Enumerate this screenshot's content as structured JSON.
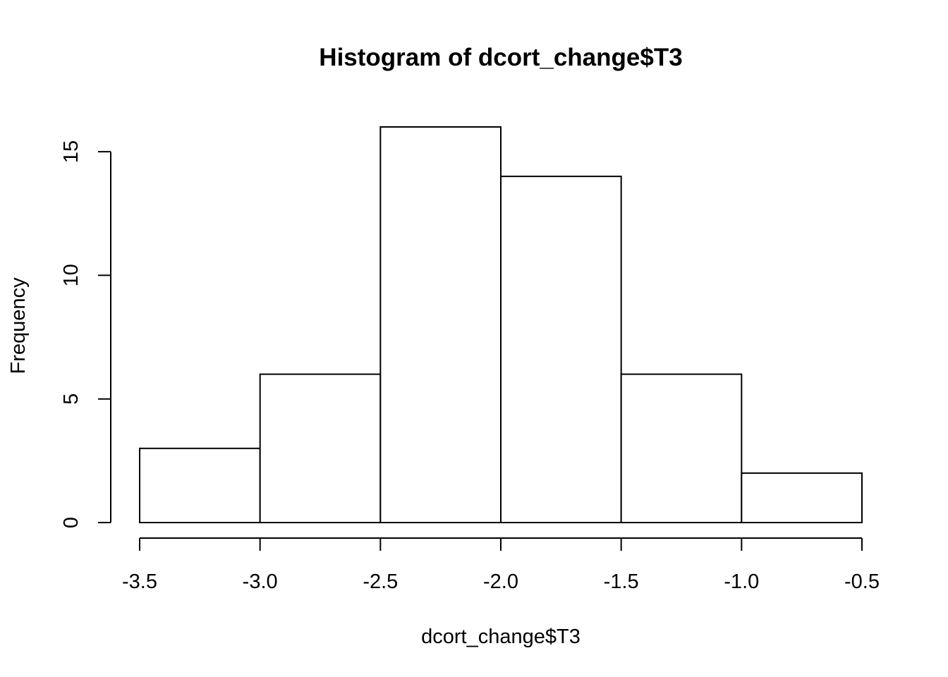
{
  "chart_data": {
    "type": "bar",
    "title": "Histogram of dcort_change$T3",
    "xlabel": "dcort_change$T3",
    "ylabel": "Frequency",
    "bins": [
      {
        "x0": -3.5,
        "x1": -3.0,
        "count": 3
      },
      {
        "x0": -3.0,
        "x1": -2.5,
        "count": 6
      },
      {
        "x0": -2.5,
        "x1": -2.0,
        "count": 16
      },
      {
        "x0": -2.0,
        "x1": -1.5,
        "count": 14
      },
      {
        "x0": -1.5,
        "x1": -1.0,
        "count": 6
      },
      {
        "x0": -1.0,
        "x1": -0.5,
        "count": 2
      }
    ],
    "xlim": [
      -3.5,
      -0.5
    ],
    "ylim": [
      0,
      16
    ],
    "x_ticks": [
      -3.5,
      -3.0,
      -2.5,
      -2.0,
      -1.5,
      -1.0,
      -0.5
    ],
    "x_tick_labels": [
      "-3.5",
      "-3.0",
      "-2.5",
      "-2.0",
      "-1.5",
      "-1.0",
      "-0.5"
    ],
    "y_ticks": [
      0,
      5,
      10,
      15
    ],
    "y_tick_labels": [
      "0",
      "5",
      "10",
      "15"
    ],
    "grid": false,
    "colors": {
      "bar_fill": "#ffffff",
      "bar_stroke": "#000000",
      "background": "#ffffff"
    }
  }
}
